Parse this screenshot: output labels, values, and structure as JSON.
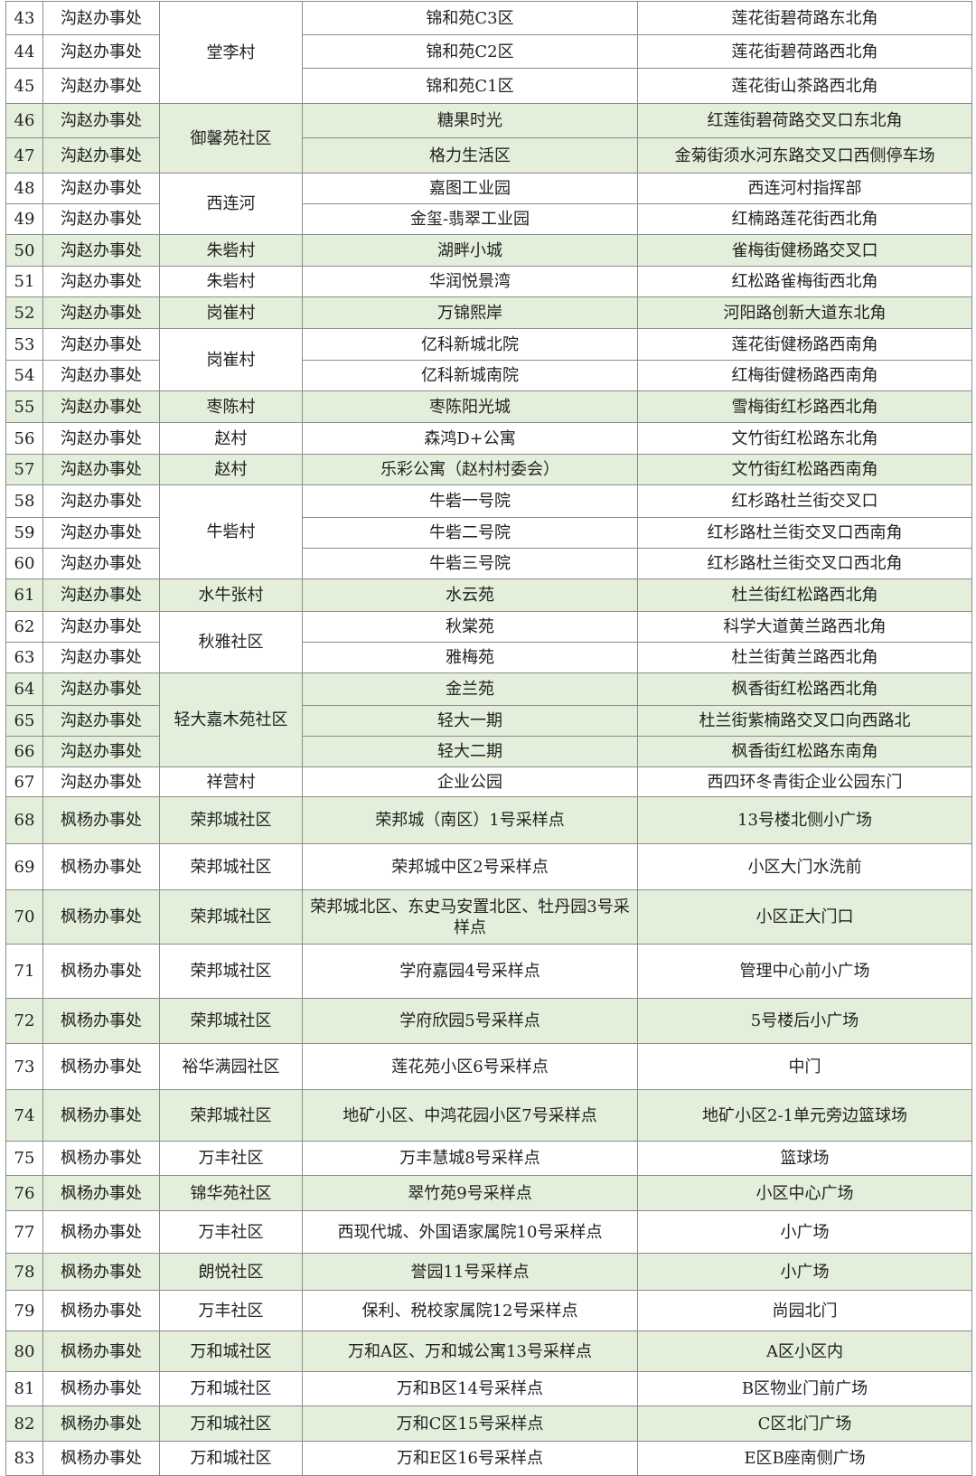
{
  "colors": {
    "row_highlight": "#e3efda",
    "border": "#8c8c8c"
  },
  "rows": [
    {
      "no": "43",
      "office": "沟赵办事处",
      "community": "堂李村",
      "span": 3,
      "site": "锦和苑C3区",
      "location": "莲花街碧荷路东北角",
      "green": false
    },
    {
      "no": "44",
      "office": "沟赵办事处",
      "site": "锦和苑C2区",
      "location": "莲花街碧荷路西北角",
      "green": false
    },
    {
      "no": "45",
      "office": "沟赵办事处",
      "site": "锦和苑C1区",
      "location": "莲花街山茶路西北角",
      "green": false
    },
    {
      "no": "46",
      "office": "沟赵办事处",
      "community": "御馨苑社区",
      "span": 2,
      "site": "糖果时光",
      "location": "红莲街碧荷路交叉口东北角",
      "green": true
    },
    {
      "no": "47",
      "office": "沟赵办事处",
      "site": "格力生活区",
      "location": "金菊街须水河东路交叉口西侧停车场",
      "green": true
    },
    {
      "no": "48",
      "office": "沟赵办事处",
      "community": "西连河",
      "span": 2,
      "site": "嘉图工业园",
      "location": "西连河村指挥部",
      "green": false
    },
    {
      "no": "49",
      "office": "沟赵办事处",
      "site": "金玺-翡翠工业园",
      "location": "红楠路莲花街西北角",
      "green": false
    },
    {
      "no": "50",
      "office": "沟赵办事处",
      "community": "朱砦村",
      "span": 1,
      "site": "湖畔小城",
      "location": "雀梅街健杨路交叉口",
      "green": true
    },
    {
      "no": "51",
      "office": "沟赵办事处",
      "community": "朱砦村",
      "span": 1,
      "site": "华润悦景湾",
      "location": "红松路雀梅街西北角",
      "green": false
    },
    {
      "no": "52",
      "office": "沟赵办事处",
      "community": "岗崔村",
      "span": 1,
      "site": "万锦熙岸",
      "location": "河阳路创新大道东北角",
      "green": true
    },
    {
      "no": "53",
      "office": "沟赵办事处",
      "community": "岗崔村",
      "span": 2,
      "site": "亿科新城北院",
      "location": "莲花街健杨路西南角",
      "green": false
    },
    {
      "no": "54",
      "office": "沟赵办事处",
      "site": "亿科新城南院",
      "location": "红梅街健杨路西南角",
      "green": false
    },
    {
      "no": "55",
      "office": "沟赵办事处",
      "community": "枣陈村",
      "span": 1,
      "site": "枣陈阳光城",
      "location": "雪梅街红杉路西北角",
      "green": true
    },
    {
      "no": "56",
      "office": "沟赵办事处",
      "community": "赵村",
      "span": 1,
      "site": "森鸿D+公寓",
      "location": "文竹街红松路东北角",
      "green": false
    },
    {
      "no": "57",
      "office": "沟赵办事处",
      "community": "赵村",
      "span": 1,
      "site": "乐彩公寓（赵村村委会）",
      "location": "文竹街红松路西南角",
      "green": true
    },
    {
      "no": "58",
      "office": "沟赵办事处",
      "community": "牛砦村",
      "span": 3,
      "site": "牛砦一号院",
      "location": "红杉路杜兰街交叉口",
      "green": false
    },
    {
      "no": "59",
      "office": "沟赵办事处",
      "site": "牛砦二号院",
      "location": "红杉路杜兰街交叉口西南角",
      "green": false
    },
    {
      "no": "60",
      "office": "沟赵办事处",
      "site": "牛砦三号院",
      "location": "红杉路杜兰街交叉口西北角",
      "green": false
    },
    {
      "no": "61",
      "office": "沟赵办事处",
      "community": "水牛张村",
      "span": 1,
      "site": "水云苑",
      "location": "杜兰街红松路西北角",
      "green": true
    },
    {
      "no": "62",
      "office": "沟赵办事处",
      "community": "秋雅社区",
      "span": 2,
      "site": "秋棠苑",
      "location": "科学大道黄兰路西北角",
      "green": false
    },
    {
      "no": "63",
      "office": "沟赵办事处",
      "site": "雅梅苑",
      "location": "杜兰街黄兰路西北角",
      "green": false
    },
    {
      "no": "64",
      "office": "沟赵办事处",
      "community": "轻大嘉木苑社区",
      "span": 3,
      "site": "金兰苑",
      "location": "枫香街红松路西北角",
      "green": true
    },
    {
      "no": "65",
      "office": "沟赵办事处",
      "site": "轻大一期",
      "location": "杜兰街紫楠路交叉口向西路北",
      "green": true
    },
    {
      "no": "66",
      "office": "沟赵办事处",
      "site": "轻大二期",
      "location": "枫香街红松路东南角",
      "green": true
    },
    {
      "no": "67",
      "office": "沟赵办事处",
      "community": "祥营村",
      "span": 1,
      "site": "企业公园",
      "location": "西四环冬青街企业公园东门",
      "green": false
    },
    {
      "no": "68",
      "office": "枫杨办事处",
      "community": "荣邦城社区",
      "span": 1,
      "site": "荣邦城（南区）1号采样点",
      "location": "13号楼北侧小广场",
      "green": true
    },
    {
      "no": "69",
      "office": "枫杨办事处",
      "community": "荣邦城社区",
      "span": 1,
      "site": "荣邦城中区2号采样点",
      "location": "小区大门水洗前",
      "green": false
    },
    {
      "no": "70",
      "office": "枫杨办事处",
      "community": "荣邦城社区",
      "span": 1,
      "site": "荣邦城北区、东史马安置北区、牡丹园3号采样点",
      "location": "小区正大门口",
      "green": true
    },
    {
      "no": "71",
      "office": "枫杨办事处",
      "community": "荣邦城社区",
      "span": 1,
      "site": "学府嘉园4号采样点",
      "location": "管理中心前小广场",
      "green": false
    },
    {
      "no": "72",
      "office": "枫杨办事处",
      "community": "荣邦城社区",
      "span": 1,
      "site": "学府欣园5号采样点",
      "location": "5号楼后小广场",
      "green": true
    },
    {
      "no": "73",
      "office": "枫杨办事处",
      "community": "裕华满园社区",
      "span": 1,
      "site": "莲花苑小区6号采样点",
      "location": "中门",
      "green": false
    },
    {
      "no": "74",
      "office": "枫杨办事处",
      "community": "荣邦城社区",
      "span": 1,
      "site": "地矿小区、中鸿花园小区7号采样点",
      "location": "地矿小区2-1单元旁边篮球场",
      "green": true
    },
    {
      "no": "75",
      "office": "枫杨办事处",
      "community": "万丰社区",
      "span": 1,
      "site": "万丰慧城8号采样点",
      "location": "篮球场",
      "green": false
    },
    {
      "no": "76",
      "office": "枫杨办事处",
      "community": "锦华苑社区",
      "span": 1,
      "site": "翠竹苑9号采样点",
      "location": "小区中心广场",
      "green": true
    },
    {
      "no": "77",
      "office": "枫杨办事处",
      "community": "万丰社区",
      "span": 1,
      "site": "西现代城、外国语家属院10号采样点",
      "location": "小广场",
      "green": false
    },
    {
      "no": "78",
      "office": "枫杨办事处",
      "community": "朗悦社区",
      "span": 1,
      "site": "誉园11号采样点",
      "location": "小广场",
      "green": true
    },
    {
      "no": "79",
      "office": "枫杨办事处",
      "community": "万丰社区",
      "span": 1,
      "site": "保利、税校家属院12号采样点",
      "location": "尚园北门",
      "green": false
    },
    {
      "no": "80",
      "office": "枫杨办事处",
      "community": "万和城社区",
      "span": 1,
      "site": "万和A区、万和城公寓13号采样点",
      "location": "A区小区内",
      "green": true
    },
    {
      "no": "81",
      "office": "枫杨办事处",
      "community": "万和城社区",
      "span": 1,
      "site": "万和B区14号采样点",
      "location": "B区物业门前广场",
      "green": false
    },
    {
      "no": "82",
      "office": "枫杨办事处",
      "community": "万和城社区",
      "span": 1,
      "site": "万和C区15号采样点",
      "location": "C区北门广场",
      "green": true
    },
    {
      "no": "83",
      "office": "枫杨办事处",
      "community": "万和城社区",
      "span": 1,
      "site": "万和E区16号采样点",
      "location": "E区B座南侧广场",
      "green": false
    }
  ]
}
